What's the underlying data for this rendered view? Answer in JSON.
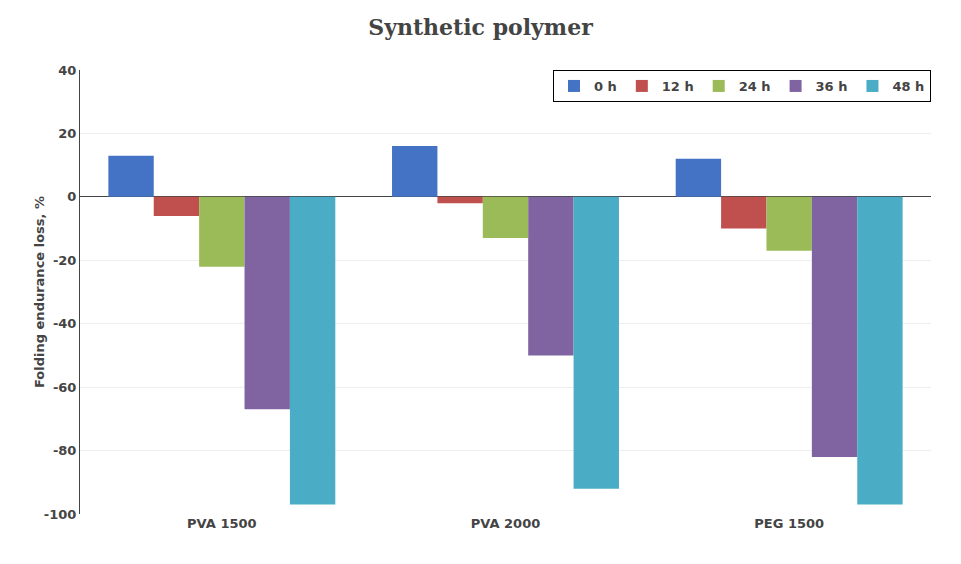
{
  "chart_data": {
    "type": "bar",
    "title": "Synthetic polymer",
    "ylabel": "Folding endurance loss, %",
    "categories": [
      "PVA 1500",
      "PVA 2000",
      "PEG 1500"
    ],
    "series": [
      {
        "name": "0 h",
        "color": "#4472C4",
        "values": [
          13,
          16,
          12
        ]
      },
      {
        "name": "12 h",
        "color": "#C0504D",
        "values": [
          -6,
          -2,
          -10
        ]
      },
      {
        "name": "24 h",
        "color": "#9BBB59",
        "values": [
          -22,
          -13,
          -17
        ]
      },
      {
        "name": "36 h",
        "color": "#8064A2",
        "values": [
          -67,
          -50,
          -82
        ]
      },
      {
        "name": "48 h",
        "color": "#4BACC6",
        "values": [
          -97,
          -92,
          -97
        ]
      }
    ],
    "ylim": [
      -100,
      40
    ],
    "yticks": [
      -100,
      -80,
      -60,
      -40,
      -20,
      0,
      20,
      40
    ],
    "grid": true,
    "legend": "upper right"
  }
}
